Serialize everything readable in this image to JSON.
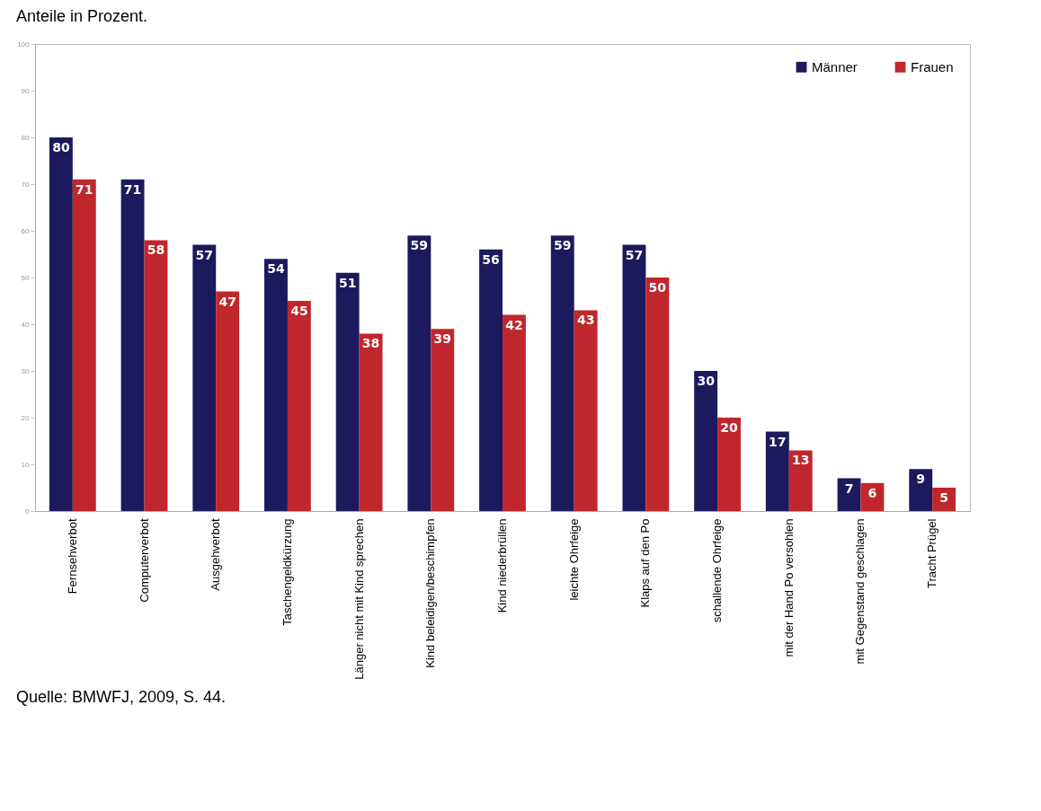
{
  "chart_data": {
    "type": "bar",
    "title": "Anteile in Prozent.",
    "categories": [
      "Fernsehverbot",
      "Computerverbot",
      "Ausgehverbot",
      "Taschengeldkürzung",
      "Länger nicht mit Kind sprechen",
      "Kind beleidigen/beschimpfen",
      "Kind niederbrüllen",
      "leichte Ohrfeige",
      "Klaps auf den Po",
      "schallende Ohrfeige",
      "mit der Hand Po versohlen",
      "mit Gegenstand geschlagen",
      "Tracht Prügel"
    ],
    "series": [
      {
        "name": "Männer",
        "color": "#1c1a5c",
        "values": [
          80,
          71,
          57,
          54,
          51,
          59,
          56,
          59,
          57,
          30,
          17,
          7,
          9
        ]
      },
      {
        "name": "Frauen",
        "color": "#c0272d",
        "values": [
          71,
          58,
          47,
          45,
          38,
          39,
          42,
          43,
          50,
          20,
          13,
          6,
          5
        ]
      }
    ],
    "ylim": [
      0,
      100
    ],
    "yticks": [
      0,
      10,
      20,
      30,
      40,
      50,
      60,
      70,
      80,
      90,
      100
    ],
    "data_labels": true,
    "legend": "top right",
    "annotations": [
      "Quelle: BMWFJ, 2009, S. 44."
    ]
  }
}
